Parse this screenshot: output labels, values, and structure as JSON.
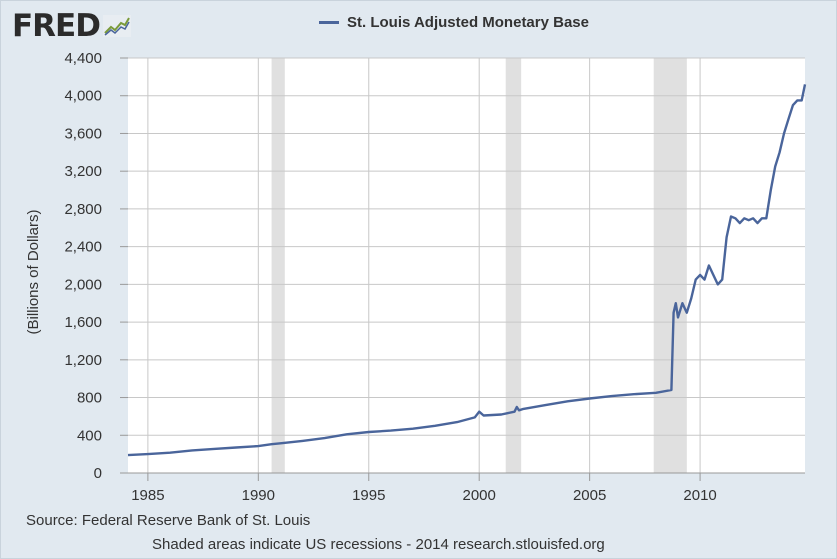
{
  "brand": {
    "name": "FRED",
    "logo_icon": "trend-line-icon"
  },
  "legend": {
    "label": "St. Louis Adjusted Monetary Base",
    "color": "#4a659b"
  },
  "footer": {
    "source": "Source: Federal Reserve Bank of St. Louis",
    "note": "Shaded areas indicate US recessions - 2014 research.stlouisfed.org"
  },
  "colors": {
    "background": "#e1e9f0",
    "plot_background": "#ffffff",
    "line": "#4a659b",
    "recession": "#e0e0e0",
    "grid": "#c8c8c8"
  },
  "chart_data": {
    "type": "line",
    "title": "",
    "xlabel": "",
    "ylabel": "(Billions of Dollars)",
    "xlim": [
      1984.1,
      2014.75
    ],
    "ylim": [
      0,
      4400
    ],
    "x_ticks": [
      1985,
      1990,
      1995,
      2000,
      2005,
      2010
    ],
    "x_tick_labels": [
      "1985",
      "1990",
      "1995",
      "2000",
      "2005",
      "2010"
    ],
    "y_ticks": [
      0,
      400,
      800,
      1200,
      1600,
      2000,
      2400,
      2800,
      3200,
      3600,
      4000,
      4400
    ],
    "y_tick_labels": [
      "0",
      "400",
      "800",
      "1,200",
      "1,600",
      "2,000",
      "2,400",
      "2,800",
      "3,200",
      "3,600",
      "4,000",
      "4,400"
    ],
    "grid": true,
    "recessions": [
      {
        "start": 1990.6,
        "end": 1991.2
      },
      {
        "start": 2001.2,
        "end": 2001.9
      },
      {
        "start": 2007.9,
        "end": 2009.4
      }
    ],
    "series": [
      {
        "name": "St. Louis Adjusted Monetary Base",
        "x": [
          1984.1,
          1985.0,
          1986.0,
          1987.0,
          1988.0,
          1989.0,
          1990.0,
          1990.6,
          1991.0,
          1992.0,
          1993.0,
          1994.0,
          1995.0,
          1996.0,
          1997.0,
          1998.0,
          1999.0,
          1999.8,
          2000.0,
          2000.2,
          2001.0,
          2001.6,
          2001.7,
          2001.8,
          2002.0,
          2003.0,
          2004.0,
          2005.0,
          2006.0,
          2007.0,
          2008.0,
          2008.7,
          2008.8,
          2008.9,
          2009.0,
          2009.2,
          2009.4,
          2009.6,
          2009.8,
          2010.0,
          2010.2,
          2010.4,
          2010.6,
          2010.8,
          2011.0,
          2011.2,
          2011.4,
          2011.6,
          2011.8,
          2012.0,
          2012.2,
          2012.4,
          2012.6,
          2012.8,
          2013.0,
          2013.2,
          2013.4,
          2013.6,
          2013.8,
          2014.0,
          2014.2,
          2014.4,
          2014.6,
          2014.75
        ],
        "y": [
          190,
          200,
          215,
          240,
          255,
          270,
          285,
          305,
          315,
          340,
          370,
          410,
          435,
          450,
          470,
          500,
          540,
          590,
          650,
          610,
          620,
          650,
          700,
          665,
          680,
          720,
          760,
          790,
          815,
          835,
          850,
          880,
          1700,
          1800,
          1650,
          1800,
          1700,
          1850,
          2050,
          2100,
          2050,
          2200,
          2100,
          2000,
          2050,
          2500,
          2720,
          2700,
          2650,
          2700,
          2680,
          2700,
          2650,
          2700,
          2700,
          3000,
          3250,
          3400,
          3600,
          3750,
          3900,
          3950,
          3950,
          4120
        ]
      }
    ]
  }
}
